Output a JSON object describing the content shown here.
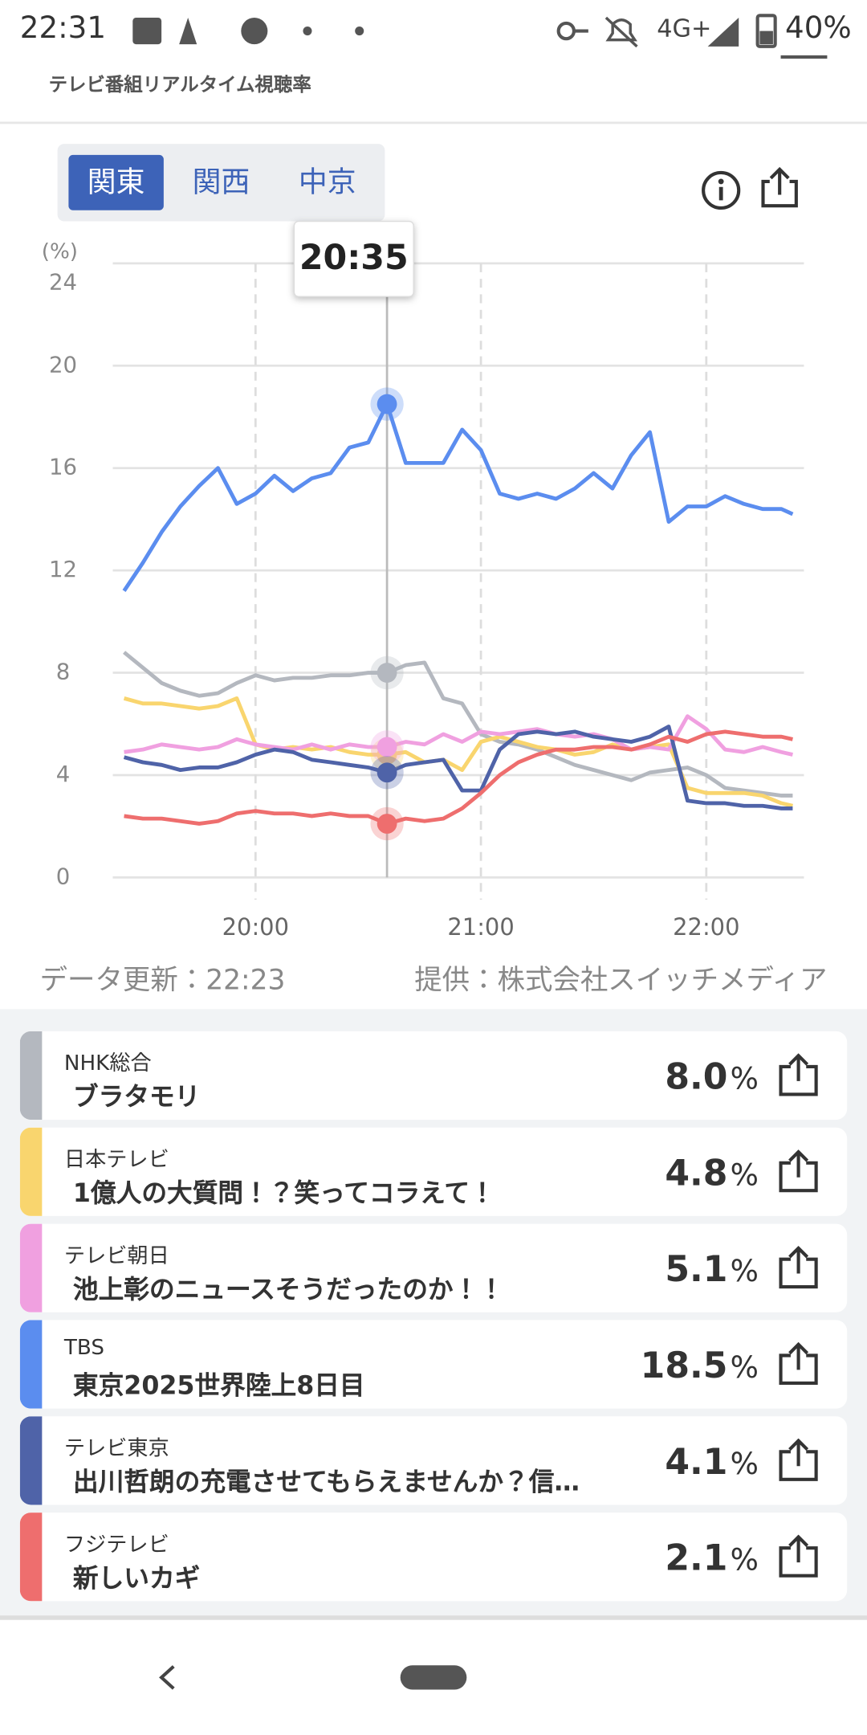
{
  "status_bar": {
    "time": "22:31",
    "network": "4G+",
    "battery": "40%"
  },
  "header": {
    "subtitle": "テレビ番組リアルタイム視聴率"
  },
  "tabs": [
    "関東",
    "関西",
    "中京"
  ],
  "chart_data": {
    "type": "line",
    "y_label": "(%)",
    "x": [
      1165,
      1170,
      1175,
      1180,
      1185,
      1190,
      1195,
      1200,
      1205,
      1210,
      1215,
      1220,
      1225,
      1230,
      1235,
      1240,
      1245,
      1250,
      1255,
      1260,
      1265,
      1270,
      1275,
      1280,
      1285,
      1290,
      1295,
      1300,
      1305,
      1310,
      1315,
      1320,
      1325,
      1330,
      1335,
      1340,
      1343
    ],
    "xlim": [
      1162,
      1346
    ],
    "xticks": [
      {
        "value": 1200,
        "label": "20:00"
      },
      {
        "value": 1260,
        "label": "21:00"
      },
      {
        "value": 1320,
        "label": "22:00"
      }
    ],
    "ylim": [
      0,
      24
    ],
    "yticks": [
      0,
      4,
      8,
      12,
      16,
      20,
      24
    ],
    "grid": true,
    "tooltip": {
      "value": 1235,
      "label": "20:35"
    },
    "series": [
      {
        "name": "NHK総合",
        "color": "#b4b8bf",
        "values": [
          8.8,
          8.2,
          7.6,
          7.3,
          7.1,
          7.2,
          7.6,
          7.9,
          7.7,
          7.8,
          7.8,
          7.9,
          7.9,
          8.0,
          8.0,
          8.3,
          8.4,
          7.0,
          6.8,
          5.6,
          5.3,
          5.2,
          5.0,
          4.7,
          4.4,
          4.2,
          4.0,
          3.8,
          4.1,
          4.2,
          4.3,
          4.0,
          3.5,
          3.4,
          3.3,
          3.2,
          3.2
        ]
      },
      {
        "name": "日本テレビ",
        "color": "#f9d56e",
        "values": [
          7.0,
          6.8,
          6.8,
          6.7,
          6.6,
          6.7,
          7.0,
          5.2,
          5.0,
          5.1,
          5.0,
          5.1,
          4.9,
          4.8,
          4.8,
          4.9,
          4.5,
          4.6,
          4.2,
          5.3,
          5.5,
          5.3,
          5.1,
          5.0,
          4.8,
          4.9,
          5.2,
          5.0,
          5.1,
          5.2,
          3.5,
          3.3,
          3.3,
          3.3,
          3.2,
          2.9,
          2.8
        ]
      },
      {
        "name": "テレビ朝日",
        "color": "#f0a0e0",
        "values": [
          4.9,
          5.0,
          5.2,
          5.1,
          5.0,
          5.1,
          5.4,
          5.2,
          5.1,
          5.0,
          5.2,
          5.0,
          5.2,
          5.1,
          5.1,
          5.3,
          5.2,
          5.6,
          5.3,
          5.7,
          5.6,
          5.7,
          5.8,
          5.6,
          5.5,
          5.6,
          5.4,
          5.0,
          5.1,
          5.0,
          6.3,
          5.8,
          5.0,
          4.9,
          5.1,
          4.9,
          4.8
        ]
      },
      {
        "name": "TBS",
        "color": "#5b8def",
        "values": [
          11.2,
          12.3,
          13.5,
          14.5,
          15.3,
          16.0,
          14.6,
          15.0,
          15.7,
          15.1,
          15.6,
          15.8,
          16.8,
          17.0,
          18.5,
          16.2,
          16.2,
          16.2,
          17.5,
          16.7,
          15.0,
          14.8,
          15.0,
          14.8,
          15.2,
          15.8,
          15.2,
          16.5,
          17.4,
          13.9,
          14.5,
          14.5,
          14.9,
          14.6,
          14.4,
          14.4,
          14.2
        ]
      },
      {
        "name": "テレビ東京",
        "color": "#4f63a8",
        "values": [
          4.7,
          4.5,
          4.4,
          4.2,
          4.3,
          4.3,
          4.5,
          4.8,
          5.0,
          4.9,
          4.6,
          4.5,
          4.4,
          4.3,
          4.1,
          4.4,
          4.5,
          4.6,
          3.4,
          3.4,
          5.0,
          5.6,
          5.7,
          5.6,
          5.7,
          5.5,
          5.4,
          5.3,
          5.5,
          5.9,
          3.0,
          2.9,
          2.9,
          2.8,
          2.8,
          2.7,
          2.7
        ]
      },
      {
        "name": "フジテレビ",
        "color": "#ee6e6e",
        "values": [
          2.4,
          2.3,
          2.3,
          2.2,
          2.1,
          2.2,
          2.5,
          2.6,
          2.5,
          2.5,
          2.4,
          2.5,
          2.4,
          2.4,
          2.1,
          2.3,
          2.2,
          2.3,
          2.7,
          3.3,
          4.0,
          4.5,
          4.8,
          5.0,
          5.0,
          5.1,
          5.1,
          5.0,
          5.2,
          5.5,
          5.3,
          5.6,
          5.7,
          5.6,
          5.5,
          5.5,
          5.4
        ]
      }
    ]
  },
  "footer": {
    "updated": "データ更新：22:23",
    "source": "提供：株式会社スイッチメディア"
  },
  "programs": [
    {
      "channel": "NHK総合",
      "title": "ブラタモリ",
      "rating": "8.0",
      "unit": "%"
    },
    {
      "channel": "日本テレビ",
      "title": "1億人の大質問！？笑ってコラえて！",
      "rating": "4.8",
      "unit": "%"
    },
    {
      "channel": "テレビ朝日",
      "title": "池上彰のニュースそうだったのか！！",
      "rating": "5.1",
      "unit": "%"
    },
    {
      "channel": "TBS",
      "title": "東京2025世界陸上8日目",
      "rating": "18.5",
      "unit": "%"
    },
    {
      "channel": "テレビ東京",
      "title": "出川哲朗の充電させてもらえませんか？信…",
      "rating": "4.1",
      "unit": "%"
    },
    {
      "channel": "フジテレビ",
      "title": "新しいカギ",
      "rating": "2.1",
      "unit": "%"
    }
  ]
}
